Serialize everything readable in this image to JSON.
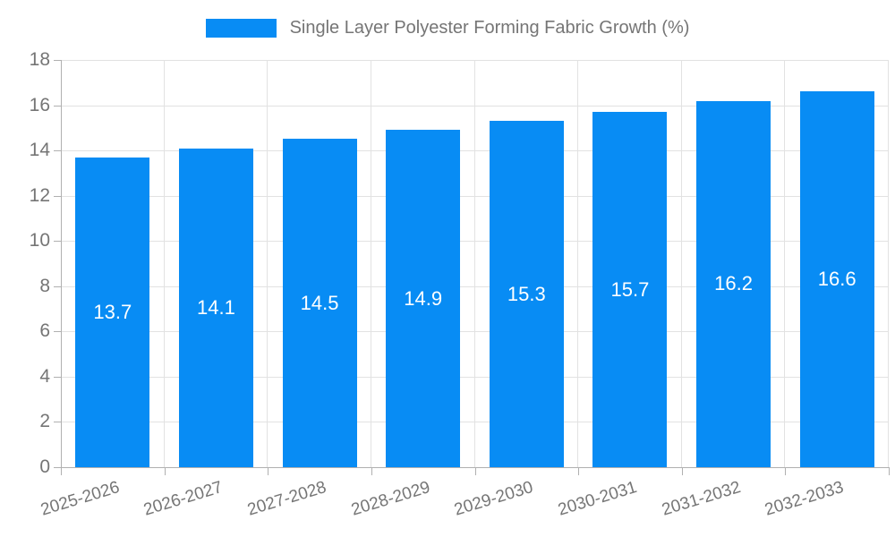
{
  "legend": {
    "label": "Single Layer Polyester Forming Fabric Growth (%)"
  },
  "chart_data": {
    "type": "bar",
    "categories": [
      "2025-2026",
      "2026-2027",
      "2027-2028",
      "2028-2029",
      "2029-2030",
      "2030-2031",
      "2031-2032",
      "2032-2033"
    ],
    "values": [
      13.7,
      14.1,
      14.5,
      14.9,
      15.3,
      15.7,
      16.2,
      16.6
    ],
    "title": "Single Layer Polyester Forming Fabric Growth (%)",
    "xlabel": "",
    "ylabel": "",
    "ylim": [
      0,
      18
    ],
    "ytick_step": 2,
    "yticks": [
      0,
      2,
      4,
      6,
      8,
      10,
      12,
      14,
      16,
      18
    ],
    "grid": true,
    "legend_position": "top",
    "bar_value_labels": [
      "13.7",
      "14.1",
      "14.5",
      "14.9",
      "15.3",
      "15.7",
      "16.2",
      "16.6"
    ]
  },
  "colors": {
    "bar": "#088cf4",
    "grid": "#e2e2e2",
    "axis": "#b0b0b0",
    "tick_text": "#757575",
    "bar_label": "#ffffff"
  }
}
